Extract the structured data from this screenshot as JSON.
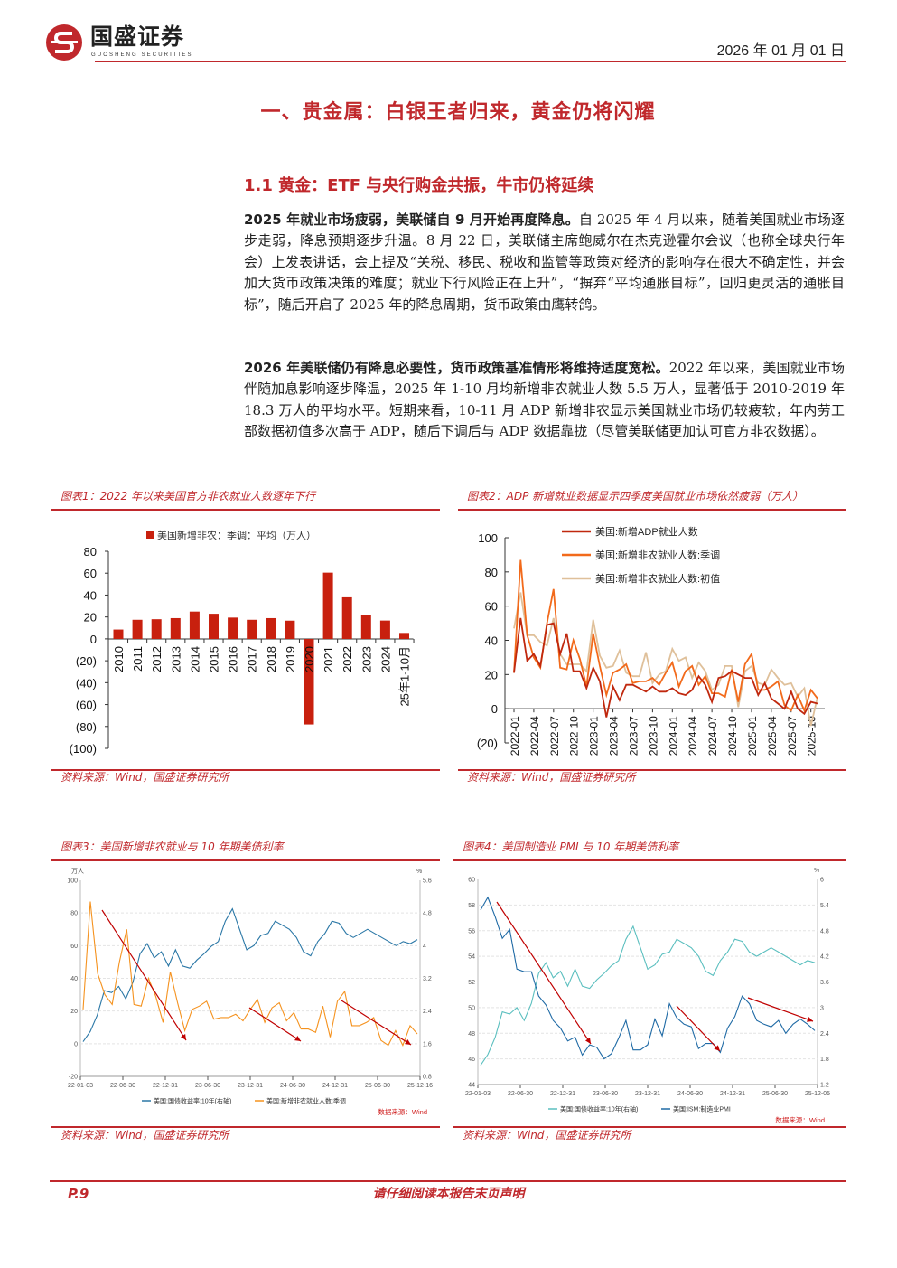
{
  "header": {
    "logo_name": "国盛证券",
    "logo_sub": "GUOSHENG SECURITIES",
    "date": "2026 年 01 月 01 日"
  },
  "title": "一、贵金属：白银王者归来，黄金仍将闪耀",
  "section": "1.1 黄金：ETF 与央行购金共振，牛市仍将延续",
  "paragraphs": [
    {
      "lead": "2025 年就业市场疲弱，美联储自 9 月开始再度降息。",
      "body": "自 2025 年 4 月以来，随着美国就业市场逐步走弱，降息预期逐步升温。8 月 22 日，美联储主席鲍威尔在杰克逊霍尔会议（也称全球央行年会）上发表讲话，会上提及“关税、移民、税收和监管等政策对经济的影响存在很大不确定性，并会加大货币政策决策的难度；就业下行风险正在上升”，“摒弃“平均通胀目标”，回归更灵活的通胀目标”，随后开启了 2025 年的降息周期，货币政策由鹰转鸽。"
    },
    {
      "lead": "2026 年美联储仍有降息必要性，货币政策基准情形将维持适度宽松。",
      "body": "2022 年以来，美国就业市场伴随加息影响逐步降温，2025 年 1-10 月均新增非农就业人数 5.5 万人，显著低于 2010-2019 年 18.3 万人的平均水平。短期来看，10-11 月 ADP 新增非农显示美国就业市场仍较疲软，年内劳工部数据初值多次高于 ADP，随后下调后与 ADP 数据靠拢（尽管美联储更加认可官方非农数据）。"
    }
  ],
  "figures": [
    {
      "title": "图表1：2022 年以来美国官方非农就业人数逐年下行",
      "source": "资料来源：Wind，国盛证券研究所"
    },
    {
      "title": "图表2：ADP 新增就业数据显示四季度美国就业市场依然疲弱（万人）",
      "source": "资料来源：Wind，国盛证券研究所"
    },
    {
      "title": "图表3：美国新增非农就业与 10 年期美债利率",
      "source": "资料来源：Wind，国盛证券研究所"
    },
    {
      "title": "图表4：美国制造业 PMI 与 10 年期美债利率",
      "source": "资料来源：Wind，国盛证券研究所"
    }
  ],
  "chart_data": [
    {
      "type": "bar",
      "legend": "美国新增非农：季调：平均（万人）",
      "categories": [
        "2010",
        "2011",
        "2012",
        "2013",
        "2014",
        "2015",
        "2016",
        "2017",
        "2018",
        "2019",
        "2020",
        "2021",
        "2022",
        "2023",
        "2024",
        "25年1-10月"
      ],
      "values": [
        8.6,
        17.5,
        18.0,
        19.0,
        25.0,
        23.0,
        19.5,
        17.5,
        19.0,
        16.7,
        -78.0,
        60.5,
        38.0,
        21.6,
        16.8,
        5.5
      ],
      "yticks": [
        "80",
        "60",
        "40",
        "20",
        "0",
        "(20)",
        "(40)",
        "(60)",
        "(80)",
        "(100)"
      ],
      "ylim": [
        -100,
        80
      ],
      "color": "#c8200e"
    },
    {
      "type": "line",
      "xticks": [
        "2022-01",
        "2022-04",
        "2022-07",
        "2022-10",
        "2023-01",
        "2023-04",
        "2023-07",
        "2023-10",
        "2024-01",
        "2024-04",
        "2024-07",
        "2024-10",
        "2025-01",
        "2025-04",
        "2025-07",
        "2025-10"
      ],
      "yticks": [
        "100",
        "80",
        "60",
        "40",
        "20",
        "0",
        "(20)"
      ],
      "ylim": [
        -20,
        100
      ],
      "series": [
        {
          "name": "美国:新增ADP就业人数",
          "color": "#c0280e",
          "values": [
            21,
            53,
            28,
            32,
            25,
            49,
            50,
            32,
            44,
            22,
            22,
            12,
            24,
            16,
            -5,
            13,
            5,
            14,
            14,
            12,
            10,
            13,
            10,
            10,
            12,
            9,
            8,
            11,
            19,
            14,
            4,
            18,
            19,
            22,
            20,
            18,
            18,
            8,
            15,
            6,
            3,
            0,
            10,
            0,
            -3,
            4,
            3
          ]
        },
        {
          "name": "美国:新增非农就业人数:季调",
          "color": "#f26a1b",
          "values": [
            21,
            87,
            43,
            30,
            24,
            50,
            70,
            24,
            23,
            40,
            29,
            13,
            44,
            25,
            8,
            21,
            23,
            26,
            15,
            16,
            16,
            18,
            14,
            21,
            27,
            13,
            22,
            25,
            14,
            19,
            9,
            9,
            7,
            23,
            4,
            26,
            32,
            11,
            11,
            13,
            16,
            2,
            -1,
            8,
            -1,
            11,
            6
          ]
        },
        {
          "name": "美国:新增非农就业人数:初值",
          "color": "#dfc09a",
          "values": [
            47,
            68,
            43,
            43,
            39,
            37,
            53,
            32,
            26,
            26,
            26,
            22,
            52,
            31,
            24,
            25,
            34,
            21,
            19,
            19,
            33,
            15,
            20,
            22,
            35,
            28,
            30,
            18,
            27,
            22,
            11,
            14,
            25,
            25,
            1,
            22,
            25,
            15,
            14,
            23,
            18,
            14,
            15,
            7,
            12,
            -10,
            7
          ]
        }
      ]
    },
    {
      "type": "line",
      "left_unit": "万人",
      "right_unit": "%",
      "xticks": [
        "22-01-03",
        "22-06-30",
        "22-12-31",
        "23-06-30",
        "23-12-31",
        "24-06-30",
        "24-12-31",
        "25-06-30",
        "25-12-16"
      ],
      "yticks_left": [
        "100",
        "80",
        "60",
        "40",
        "20",
        "0",
        "-20"
      ],
      "yticks_right": [
        "5.6",
        "4.8",
        "4",
        "3.2",
        "2.4",
        "1.6",
        "0.8"
      ],
      "ylim_left": [
        -20,
        100
      ],
      "ylim_right": [
        0.8,
        5.6
      ],
      "series": [
        {
          "name": "美国:国债收益率:10年(右轴)",
          "axis": "right",
          "color": "#2a77a6",
          "values": [
            1.65,
            1.9,
            2.3,
            2.9,
            2.85,
            3.0,
            2.7,
            3.1,
            3.8,
            4.05,
            3.7,
            3.85,
            3.5,
            3.9,
            3.5,
            3.45,
            3.65,
            3.8,
            3.98,
            4.1,
            4.6,
            4.9,
            4.4,
            3.9,
            4.0,
            4.25,
            4.3,
            4.6,
            4.5,
            4.4,
            4.2,
            3.85,
            3.75,
            4.1,
            4.3,
            4.6,
            4.55,
            4.3,
            4.2,
            4.3,
            4.4,
            4.3,
            4.2,
            4.1,
            4.0,
            4.1,
            4.05,
            4.15
          ]
        },
        {
          "name": "美国:新增非农就业人数:季调",
          "axis": "left",
          "color": "#f5921e",
          "values": [
            21,
            87,
            43,
            30,
            24,
            50,
            70,
            24,
            23,
            40,
            29,
            13,
            44,
            25,
            8,
            21,
            23,
            26,
            15,
            16,
            16,
            18,
            14,
            21,
            27,
            13,
            22,
            25,
            14,
            19,
            9,
            9,
            7,
            23,
            4,
            26,
            32,
            11,
            11,
            13,
            16,
            2,
            -1,
            8,
            -1,
            11,
            6
          ]
        }
      ],
      "source_note": "数据来源：Wind"
    },
    {
      "type": "line",
      "right_unit": "%",
      "xticks": [
        "22-01-03",
        "22-06-30",
        "22-12-31",
        "23-06-30",
        "23-12-31",
        "24-06-30",
        "24-12-31",
        "25-06-30",
        "25-12-05"
      ],
      "yticks_left": [
        "60",
        "58",
        "56",
        "54",
        "52",
        "50",
        "48",
        "46",
        "44"
      ],
      "yticks_right": [
        "6",
        "5.4",
        "4.8",
        "4.2",
        "3.6",
        "3",
        "2.4",
        "1.8",
        "1.2"
      ],
      "ylim_left": [
        44,
        60
      ],
      "ylim_right": [
        1.2,
        6
      ],
      "series": [
        {
          "name": "美国:国债收益率:10年(右轴)",
          "axis": "right",
          "color": "#5bbfbf",
          "values": [
            1.65,
            1.9,
            2.3,
            2.9,
            2.85,
            3.0,
            2.7,
            3.1,
            3.8,
            4.05,
            3.7,
            3.85,
            3.5,
            3.9,
            3.5,
            3.45,
            3.65,
            3.8,
            3.98,
            4.1,
            4.6,
            4.9,
            4.4,
            3.9,
            4.0,
            4.25,
            4.3,
            4.6,
            4.5,
            4.4,
            4.2,
            3.85,
            3.75,
            4.1,
            4.3,
            4.6,
            4.55,
            4.3,
            4.2,
            4.3,
            4.4,
            4.3,
            4.2,
            4.1,
            4.0,
            4.1,
            4.05
          ]
        },
        {
          "name": "美国:ISM:制造业PMI",
          "axis": "left",
          "color": "#1f6aa5",
          "values": [
            57.6,
            58.6,
            57.1,
            55.4,
            56.1,
            53.0,
            52.8,
            52.8,
            50.9,
            50.2,
            49.0,
            48.4,
            47.4,
            47.7,
            46.3,
            47.1,
            46.9,
            46.0,
            46.4,
            47.6,
            49.0,
            46.7,
            46.7,
            47.1,
            49.1,
            47.8,
            50.3,
            49.2,
            48.7,
            48.5,
            46.8,
            47.2,
            47.2,
            46.5,
            48.4,
            49.3,
            50.9,
            50.3,
            49.0,
            48.7,
            48.5,
            49.0,
            48.0,
            48.7,
            49.1,
            48.7,
            48.2
          ]
        }
      ],
      "source_note": "数据来源：Wind"
    }
  ],
  "footer": {
    "page": "P.9",
    "note": "请仔细阅读本报告末页声明"
  }
}
